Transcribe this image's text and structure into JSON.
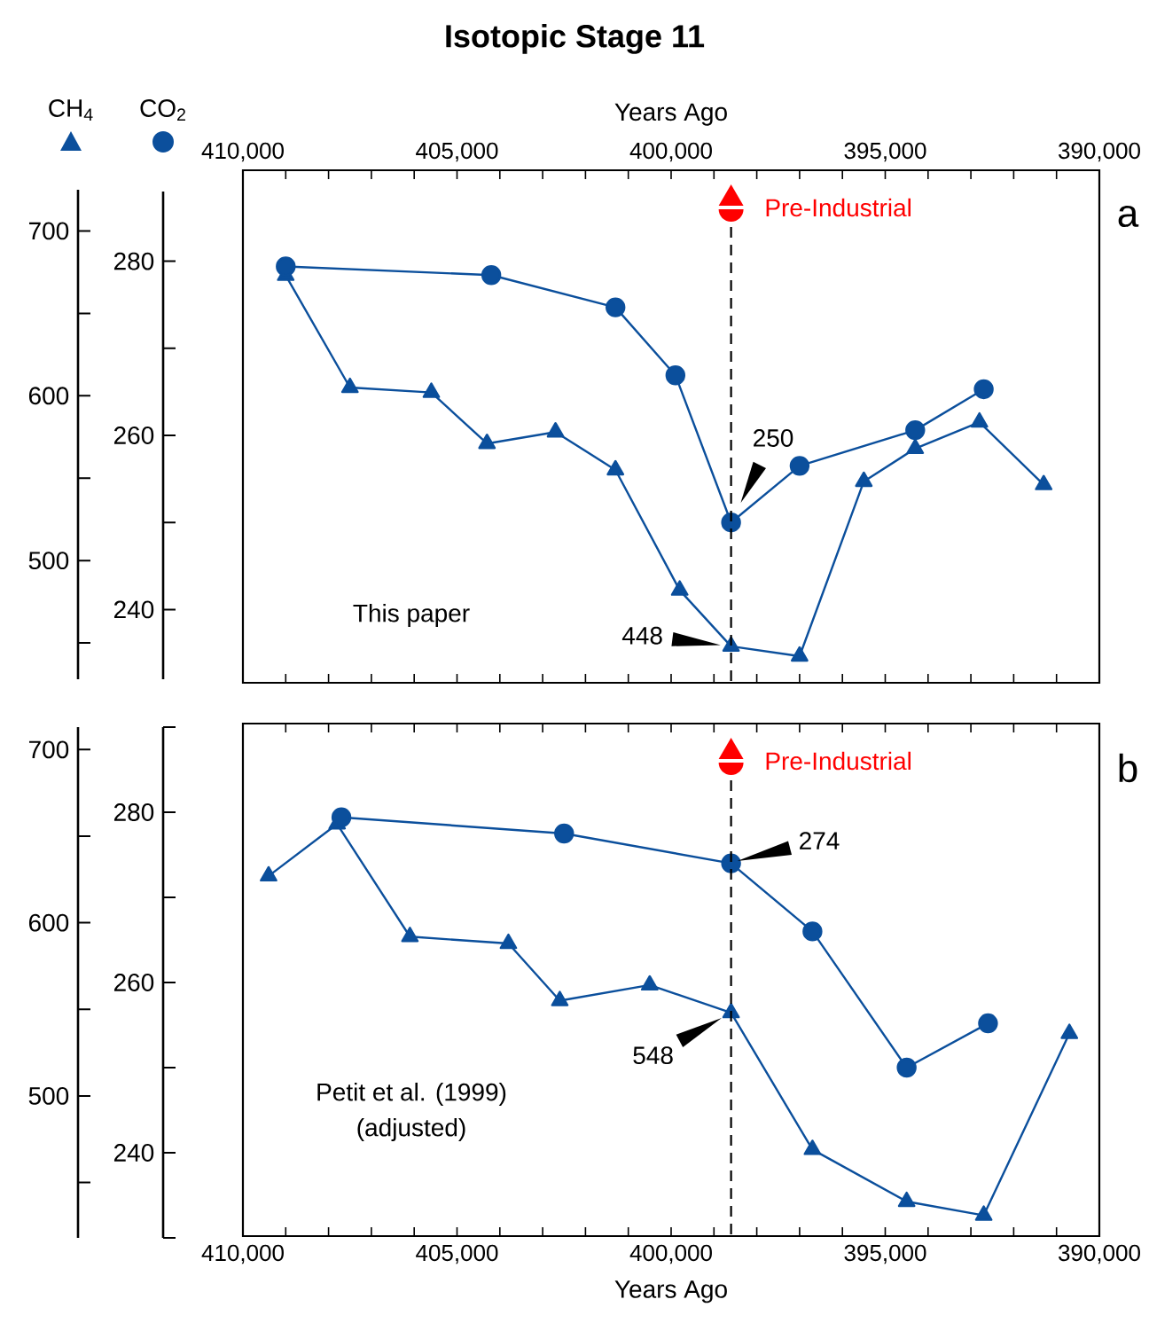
{
  "chart_data": [
    {
      "type": "line",
      "title": "Isotopic Stage 11",
      "xlabel": "Years Ago",
      "xlim": [
        410000,
        390000
      ],
      "xticks": [
        {
          "value": 410000,
          "label": "410,000"
        },
        {
          "value": 409000,
          "label": null
        },
        {
          "value": 408000,
          "label": null
        },
        {
          "value": 407000,
          "label": null
        },
        {
          "value": 406000,
          "label": null
        },
        {
          "value": 405000,
          "label": "405,000"
        },
        {
          "value": 404000,
          "label": null
        },
        {
          "value": 403000,
          "label": null
        },
        {
          "value": 402000,
          "label": null
        },
        {
          "value": 401000,
          "label": null
        },
        {
          "value": 400000,
          "label": "400,000"
        },
        {
          "value": 399000,
          "label": null
        },
        {
          "value": 398000,
          "label": null
        },
        {
          "value": 397000,
          "label": null
        },
        {
          "value": 396000,
          "label": null
        },
        {
          "value": 395000,
          "label": "395,000"
        },
        {
          "value": 394000,
          "label": null
        },
        {
          "value": 393000,
          "label": null
        },
        {
          "value": 392000,
          "label": null
        },
        {
          "value": 391000,
          "label": null
        },
        {
          "value": 390000,
          "label": "390,000"
        }
      ],
      "ylabel": "CH$_{4}$",
      "ylim": [
        428,
        725
      ],
      "yticks": [
        500,
        600,
        700
      ],
      "y2label": "CO$_{2}$",
      "y2lim": [
        232,
        288
      ],
      "y2ticks": [
        240,
        260,
        280
      ],
      "series": [
        {
          "color": "#0b4f9c",
          "marker": "triangle",
          "x": [
            409000,
            407500,
            405600,
            404300,
            402700,
            401300,
            399800,
            398600,
            397000,
            395500,
            394300,
            392800,
            391300
          ],
          "values": [
            673,
            605,
            602,
            571,
            578,
            555,
            482,
            448,
            442,
            548,
            568,
            584,
            546
          ]
        },
        {
          "color": "#0b4f9c",
          "marker": "circle",
          "axis": "y2",
          "x": [
            409000,
            404200,
            401300,
            399900,
            398600,
            397000,
            394300,
            392700
          ],
          "values": [
            279.4,
            278.4,
            274.7,
            266.9,
            250,
            256.5,
            260.6,
            265.3
          ]
        }
      ],
      "ref_lines": [
        {
          "axis": "x",
          "value": 398600,
          "label": "Pre-Industrial",
          "color": "#000000",
          "line_style": "dashed"
        }
      ],
      "annotations": [
        "a",
        "This paper",
        "250",
        {
          "text": "448",
          "x": 398600,
          "y": 448
        }
      ]
    },
    {
      "type": "line",
      "xlabel": "Years Ago",
      "xlim": [
        410000,
        390000
      ],
      "xticks": [
        {
          "value": 410000,
          "label": "410,000"
        },
        {
          "value": 409000,
          "label": null
        },
        {
          "value": 408000,
          "label": null
        },
        {
          "value": 407000,
          "label": null
        },
        {
          "value": 406000,
          "label": null
        },
        {
          "value": 405000,
          "label": "405,000"
        },
        {
          "value": 404000,
          "label": null
        },
        {
          "value": 403000,
          "label": null
        },
        {
          "value": 402000,
          "label": null
        },
        {
          "value": 401000,
          "label": null
        },
        {
          "value": 400000,
          "label": "400,000"
        },
        {
          "value": 399000,
          "label": null
        },
        {
          "value": 398000,
          "label": null
        },
        {
          "value": 397000,
          "label": null
        },
        {
          "value": 396000,
          "label": null
        },
        {
          "value": 395000,
          "label": "395,000"
        },
        {
          "value": 394000,
          "label": null
        },
        {
          "value": 393000,
          "label": null
        },
        {
          "value": 392000,
          "label": null
        },
        {
          "value": 391000,
          "label": null
        },
        {
          "value": 390000,
          "label": "390,000"
        }
      ],
      "ylim": [
        418,
        713
      ],
      "yticks": [
        500,
        600,
        700
      ],
      "y2lim": [
        230,
        290
      ],
      "y2ticks": [
        240,
        260,
        280
      ],
      "series": [
        {
          "color": "#0b4f9c",
          "marker": "triangle",
          "x": [
            409400,
            407800,
            406100,
            403800,
            402600,
            400500,
            398600,
            396700,
            394500,
            392700,
            390700
          ],
          "values": [
            627,
            657,
            592,
            588,
            555,
            564,
            548,
            469,
            439,
            431,
            536
          ]
        },
        {
          "color": "#0b4f9c",
          "marker": "circle",
          "axis": "y2",
          "x": [
            407700,
            402500,
            398600,
            396700,
            394500,
            392600
          ],
          "values": [
            279.4,
            277.5,
            274,
            266,
            250,
            255.2
          ]
        }
      ],
      "ref_lines": [
        {
          "axis": "x",
          "value": 398600,
          "label": "Pre-Industrial",
          "color": "#000000",
          "line_style": "dashed"
        }
      ],
      "annotations": [
        "b",
        "Petit et al. (1999)",
        "(adjusted)",
        "274",
        {
          "text": "548",
          "x": 398600,
          "y": 548
        }
      ]
    }
  ]
}
